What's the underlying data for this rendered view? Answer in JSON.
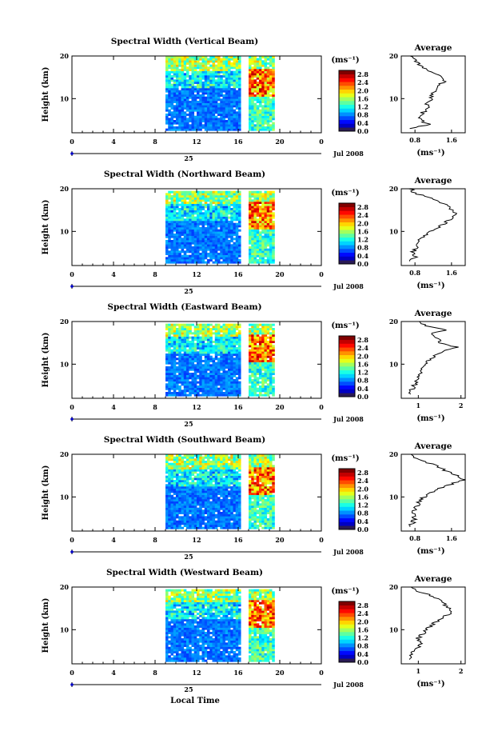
{
  "figure": {
    "xlabel": "Local Time",
    "month_label": "Jul 2008",
    "day_label": "25",
    "units_label": "(ms⁻¹)"
  },
  "chart_data": [
    {
      "type": "heatmap",
      "title": "Spectral Width (Vertical Beam)",
      "ylabel": "Height (km)",
      "xlim": [
        0,
        24
      ],
      "ylim": [
        2,
        20
      ],
      "xticks": [
        "0",
        "4",
        "8",
        "12",
        "16",
        "20",
        "0"
      ],
      "yticks": [
        "10",
        "20"
      ],
      "data_extent": {
        "t_start": 9,
        "t_gap": [
          16.2,
          16.8
        ],
        "t_end": 19.5,
        "h_min": 2.5,
        "h_max": 20
      },
      "colorbar": {
        "label": "(ms⁻¹)",
        "ticks": [
          "0.0",
          "0.4",
          "0.8",
          "1.2",
          "1.6",
          "2.0",
          "2.4",
          "2.8"
        ],
        "max": 3.0
      },
      "profile": {
        "title": "Average",
        "xlabel": "(ms⁻¹)",
        "xticks": [
          "0.8",
          "1.6"
        ],
        "xtick_values": [
          0.8,
          1.6
        ],
        "xlim": [
          0.5,
          1.9
        ],
        "yticks": [
          "10",
          "20"
        ],
        "heights": [
          3,
          4,
          5,
          6,
          7,
          8,
          9,
          10,
          11,
          12,
          13,
          14,
          15,
          16,
          17,
          18,
          19,
          20
        ],
        "values": [
          0.7,
          1.1,
          0.9,
          0.9,
          1.0,
          1.1,
          1.05,
          1.15,
          1.2,
          1.25,
          1.3,
          1.45,
          1.35,
          1.2,
          1.05,
          0.9,
          0.8,
          0.75
        ]
      },
      "colorbar_ticks": [
        "0.0",
        "0.4",
        "0.8",
        "1.2",
        "1.6",
        "2.0",
        "2.4",
        "2.8"
      ]
    },
    {
      "type": "heatmap",
      "title": "Spectral Width (Northward Beam)",
      "ylabel": "Height (km)",
      "xlim": [
        0,
        24
      ],
      "ylim": [
        2,
        20
      ],
      "xticks": [
        "0",
        "4",
        "8",
        "12",
        "16",
        "20",
        "0"
      ],
      "yticks": [
        "10",
        "20"
      ],
      "data_extent": {
        "t_start": 9,
        "t_gap": [
          16.2,
          16.8
        ],
        "t_end": 19.5,
        "h_min": 2.5,
        "h_max": 19.5
      },
      "colorbar": {
        "label": "(ms⁻¹)",
        "ticks": [
          "0.0",
          "0.4",
          "0.8",
          "1.2",
          "1.6",
          "2.0",
          "2.4",
          "2.8"
        ],
        "max": 3.0
      },
      "profile": {
        "title": "Average",
        "xlabel": "(ms⁻¹)",
        "xticks": [
          "0.8",
          "1.6"
        ],
        "xtick_values": [
          0.8,
          1.6
        ],
        "xlim": [
          0.5,
          1.9
        ],
        "yticks": [
          "10",
          "20"
        ],
        "heights": [
          3,
          4,
          5,
          6,
          7,
          8,
          9,
          10,
          11,
          12,
          13,
          14,
          15,
          16,
          17,
          18,
          19,
          20
        ],
        "values": [
          0.7,
          0.8,
          0.75,
          0.8,
          0.85,
          0.9,
          1.0,
          1.1,
          1.3,
          1.45,
          1.6,
          1.75,
          1.6,
          1.5,
          1.35,
          1.1,
          0.8,
          0.7
        ]
      }
    },
    {
      "type": "heatmap",
      "title": "Spectral Width (Eastward Beam)",
      "ylabel": "Height (km)",
      "xlim": [
        0,
        24
      ],
      "ylim": [
        2,
        20
      ],
      "xticks": [
        "0",
        "4",
        "8",
        "12",
        "16",
        "20",
        "0"
      ],
      "yticks": [
        "10",
        "20"
      ],
      "data_extent": {
        "t_start": 9,
        "t_gap": [
          16.2,
          16.8
        ],
        "t_end": 19.5,
        "h_min": 2.5,
        "h_max": 19.5
      },
      "colorbar": {
        "label": "(ms⁻¹)",
        "ticks": [
          "0.0",
          "0.4",
          "0.8",
          "1.2",
          "1.6",
          "2.0",
          "2.4",
          "2.8"
        ],
        "max": 3.0
      },
      "profile": {
        "title": "Average",
        "xlabel": "(ms⁻¹)",
        "xticks": [
          "1",
          "2"
        ],
        "xtick_values": [
          1,
          2
        ],
        "xlim": [
          0.6,
          2.1
        ],
        "yticks": [
          "10",
          "20"
        ],
        "heights": [
          3,
          4,
          5,
          6,
          7,
          8,
          9,
          10,
          11,
          12,
          13,
          14,
          15,
          16,
          17,
          18,
          19,
          20
        ],
        "values": [
          0.8,
          0.85,
          0.9,
          0.95,
          1.0,
          1.05,
          1.1,
          1.15,
          1.25,
          1.4,
          1.6,
          1.9,
          1.5,
          1.45,
          1.3,
          1.6,
          1.2,
          1.0
        ]
      }
    },
    {
      "type": "heatmap",
      "title": "Spectral Width (Southward Beam)",
      "ylabel": "Height (km)",
      "xlim": [
        0,
        24
      ],
      "ylim": [
        2,
        20
      ],
      "xticks": [
        "0",
        "4",
        "8",
        "12",
        "16",
        "20",
        "0"
      ],
      "yticks": [
        "10",
        "20"
      ],
      "data_extent": {
        "t_start": 9,
        "t_gap": [
          16.2,
          16.8
        ],
        "t_end": 19.5,
        "h_min": 2.5,
        "h_max": 20
      },
      "colorbar": {
        "label": "(ms⁻¹)",
        "ticks": [
          "0.0",
          "0.4",
          "0.8",
          "1.2",
          "1.6",
          "2.0",
          "2.4",
          "2.8"
        ],
        "max": 3.0
      },
      "profile": {
        "title": "Average",
        "xlabel": "(ms⁻¹)",
        "xticks": [
          "0.8",
          "1.6"
        ],
        "xtick_values": [
          0.8,
          1.6
        ],
        "xlim": [
          0.5,
          1.9
        ],
        "yticks": [
          "10",
          "20"
        ],
        "heights": [
          3,
          4,
          5,
          6,
          7,
          8,
          9,
          10,
          11,
          12,
          13,
          14,
          15,
          16,
          17,
          18,
          19,
          20
        ],
        "values": [
          0.7,
          0.75,
          0.8,
          0.75,
          0.8,
          0.85,
          0.9,
          1.0,
          1.15,
          1.35,
          1.6,
          1.85,
          1.7,
          1.5,
          1.3,
          1.1,
          0.85,
          0.7
        ]
      }
    },
    {
      "type": "heatmap",
      "title": "Spectral Width (Westward Beam)",
      "ylabel": "Height (km)",
      "xlim": [
        0,
        24
      ],
      "ylim": [
        2,
        20
      ],
      "xticks": [
        "0",
        "4",
        "8",
        "12",
        "16",
        "20",
        "0"
      ],
      "yticks": [
        "10",
        "20"
      ],
      "data_extent": {
        "t_start": 9,
        "t_gap": [
          16.2,
          16.8
        ],
        "t_end": 19.5,
        "h_min": 2.5,
        "h_max": 19.5
      },
      "colorbar": {
        "label": "(ms⁻¹)",
        "ticks": [
          "0.0",
          "0.4",
          "0.8",
          "1.2",
          "1.6",
          "2.0",
          "2.4",
          "2.8"
        ],
        "max": 3.0
      },
      "profile": {
        "title": "Average",
        "xlabel": "(ms⁻¹)",
        "xticks": [
          "1",
          "2"
        ],
        "xtick_values": [
          1,
          2
        ],
        "xlim": [
          0.6,
          2.1
        ],
        "yticks": [
          "10",
          "20"
        ],
        "heights": [
          3,
          4,
          5,
          6,
          7,
          8,
          9,
          10,
          11,
          12,
          13,
          14,
          15,
          16,
          17,
          18,
          19,
          20
        ],
        "values": [
          0.8,
          0.85,
          0.9,
          1.0,
          1.05,
          1.0,
          1.1,
          1.2,
          1.3,
          1.45,
          1.6,
          1.75,
          1.7,
          1.6,
          1.5,
          1.3,
          1.0,
          0.8
        ]
      }
    }
  ]
}
